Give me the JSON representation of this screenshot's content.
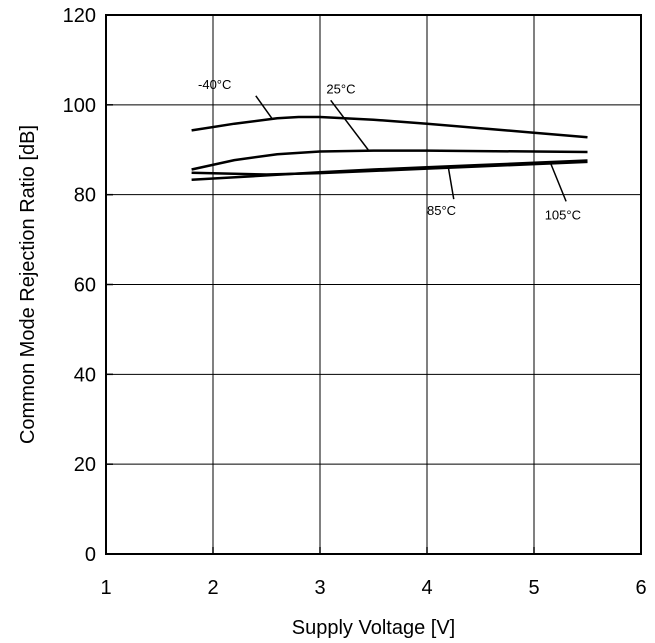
{
  "chart_data": {
    "type": "line",
    "title": "",
    "xlabel": "Supply Voltage [V]",
    "ylabel": "Common Mode Rejection Ratio [dB]",
    "xlim": [
      1,
      6
    ],
    "ylim": [
      0,
      120
    ],
    "xticks": [
      "1",
      "2",
      "3",
      "4",
      "5",
      "6"
    ],
    "yticks": [
      "0",
      "20",
      "40",
      "60",
      "80",
      "100",
      "120"
    ],
    "grid": true,
    "line_color": "#000000",
    "series": [
      {
        "name": "-40°C",
        "x": [
          1.8,
          2.2,
          2.6,
          2.8,
          3.0,
          3.5,
          4.0,
          4.5,
          5.0,
          5.5
        ],
        "y": [
          94.3,
          95.8,
          97.0,
          97.3,
          97.3,
          96.7,
          95.8,
          94.8,
          93.8,
          92.8
        ]
      },
      {
        "name": "25°C",
        "x": [
          1.8,
          2.2,
          2.6,
          3.0,
          3.5,
          4.0,
          4.5,
          5.0,
          5.5
        ],
        "y": [
          85.6,
          87.7,
          89.0,
          89.6,
          89.8,
          89.8,
          89.7,
          89.6,
          89.5
        ]
      },
      {
        "name": "85°C",
        "x": [
          1.8,
          2.5,
          3.0,
          3.5,
          4.0,
          4.5,
          5.0,
          5.5
        ],
        "y": [
          84.9,
          84.5,
          84.8,
          85.3,
          85.8,
          86.3,
          86.8,
          87.3
        ]
      },
      {
        "name": "105°C",
        "x": [
          1.8,
          2.5,
          3.0,
          3.5,
          4.0,
          4.5,
          5.0,
          5.5
        ],
        "y": [
          83.3,
          84.3,
          85.0,
          85.6,
          86.1,
          86.6,
          87.1,
          87.6
        ]
      }
    ]
  }
}
